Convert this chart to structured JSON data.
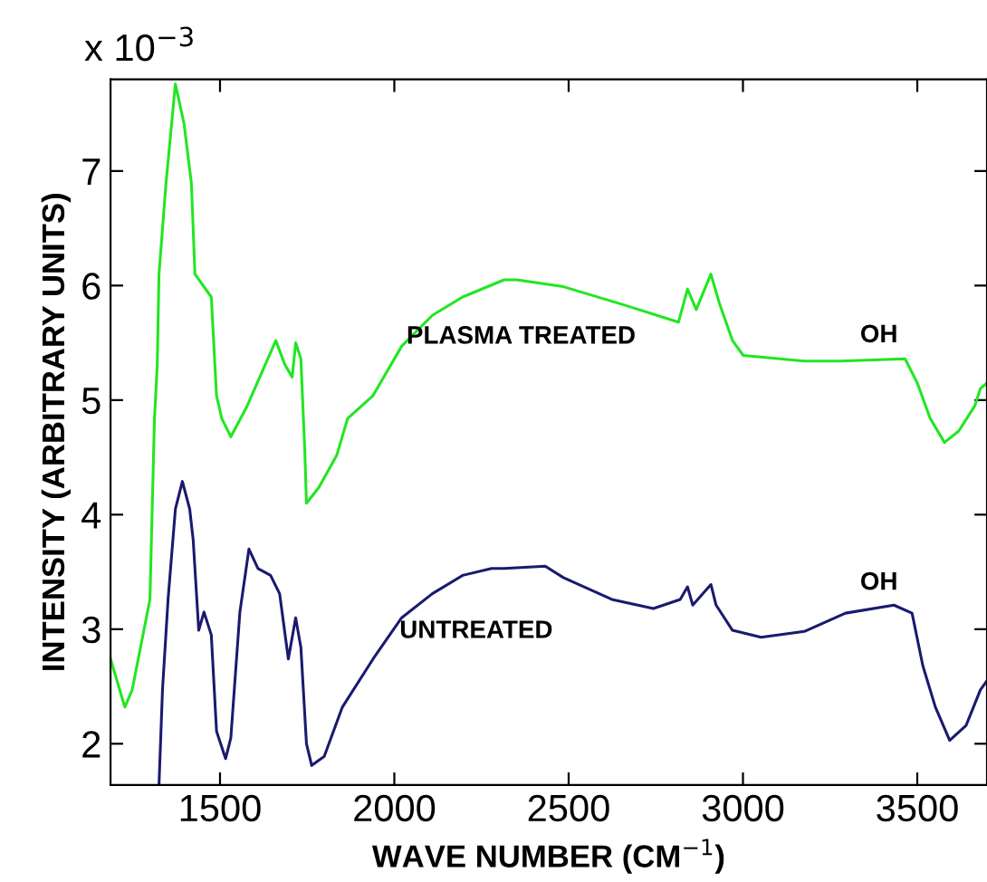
{
  "chart_data": {
    "type": "line",
    "xlabel": "WAVE NUMBER (CM$^{−1}$)",
    "ylabel": "INTENSITY (ARBITRARY UNITS)",
    "xlim": [
      1186,
      3700
    ],
    "ylim": [
      1.64,
      7.8
    ],
    "xticks": [
      1500,
      2000,
      2500,
      3000,
      3500
    ],
    "yticks": [
      2,
      3,
      4,
      5,
      6,
      7
    ],
    "grid": false,
    "legend": false,
    "marker": "none",
    "line_style": "solid",
    "annotations": [
      "x 10$^{−3}$",
      {
        "text": "PLASMA TREATED",
        "x": 2035,
        "y": 5.55
      },
      {
        "text": "OH",
        "x": 3390,
        "y": 5.35
      },
      {
        "text": "UNTREATED",
        "x": 2015,
        "y": 2.98
      },
      {
        "text": "OH",
        "x": 3390,
        "y": 3.19
      }
    ],
    "series": [
      {
        "color": "#22e622",
        "x": [
          1186,
          1227,
          1248,
          1299,
          1312,
          1320,
          1325,
          1345,
          1372,
          1397,
          1418,
          1428,
          1475,
          1490,
          1505,
          1531,
          1578,
          1660,
          1686,
          1707,
          1717,
          1732,
          1743,
          1748,
          1784,
          1835,
          1866,
          1939,
          2021,
          2109,
          2196,
          2315,
          2351,
          2485,
          2660,
          2815,
          2841,
          2866,
          2908,
          2934,
          2970,
          3001,
          3176,
          3279,
          3465,
          3500,
          3537,
          3578,
          3619,
          3665,
          3681,
          3700
        ],
        "values": [
          2.74,
          2.32,
          2.47,
          3.26,
          4.84,
          5.31,
          6.1,
          6.89,
          7.76,
          7.41,
          6.89,
          6.1,
          5.9,
          5.04,
          4.84,
          4.68,
          4.95,
          5.52,
          5.31,
          5.2,
          5.5,
          5.36,
          4.57,
          4.1,
          4.24,
          4.52,
          4.84,
          5.04,
          5.47,
          5.74,
          5.9,
          6.05,
          6.05,
          5.99,
          5.83,
          5.68,
          5.97,
          5.79,
          6.1,
          5.83,
          5.52,
          5.39,
          5.34,
          5.34,
          5.36,
          5.15,
          4.84,
          4.63,
          4.73,
          4.95,
          5.1,
          5.15
        ]
      },
      {
        "color": "#1a1a6e",
        "x": [
          1325,
          1335,
          1351,
          1372,
          1392,
          1413,
          1423,
          1439,
          1454,
          1475,
          1490,
          1516,
          1531,
          1557,
          1583,
          1609,
          1645,
          1671,
          1696,
          1717,
          1732,
          1748,
          1763,
          1799,
          1851,
          1939,
          2021,
          2109,
          2196,
          2279,
          2315,
          2433,
          2485,
          2624,
          2743,
          2820,
          2841,
          2856,
          2908,
          2923,
          2970,
          3052,
          3176,
          3294,
          3433,
          3485,
          3516,
          3552,
          3593,
          3640,
          3681,
          3700
        ],
        "values": [
          1.64,
          2.47,
          3.26,
          4.05,
          4.29,
          4.05,
          3.78,
          2.99,
          3.15,
          2.95,
          2.11,
          1.87,
          2.05,
          3.15,
          3.7,
          3.53,
          3.47,
          3.31,
          2.74,
          3.1,
          2.84,
          2.0,
          1.81,
          1.89,
          2.32,
          2.74,
          3.1,
          3.31,
          3.47,
          3.53,
          3.53,
          3.55,
          3.45,
          3.26,
          3.18,
          3.26,
          3.37,
          3.21,
          3.39,
          3.21,
          2.99,
          2.93,
          2.98,
          3.14,
          3.21,
          3.14,
          2.68,
          2.32,
          2.03,
          2.16,
          2.47,
          2.55
        ]
      }
    ]
  }
}
